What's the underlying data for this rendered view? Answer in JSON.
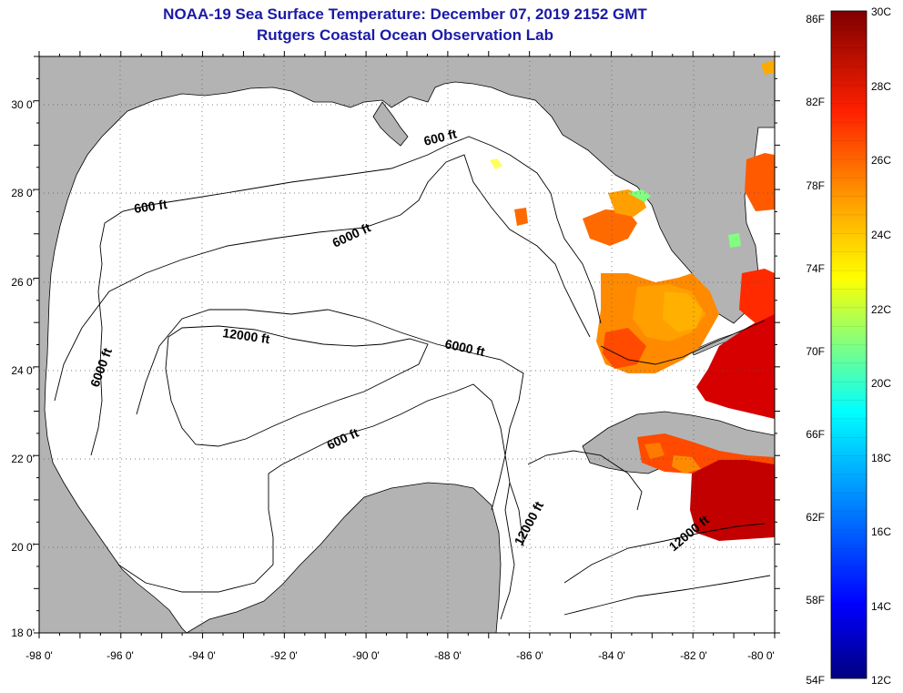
{
  "header": {
    "title": "NOAA-19 Sea Surface Temperature:  December 07, 2019 2152 GMT",
    "subtitle": "Rutgers Coastal Ocean Observation Lab"
  },
  "map": {
    "region": "Gulf of Mexico",
    "lon_range": [
      -98,
      -80
    ],
    "lat_range": [
      18,
      31
    ],
    "x_ticks": [
      "-98 0'",
      "-96 0'",
      "-94 0'",
      "-92 0'",
      "-90 0'",
      "-88 0'",
      "-86 0'",
      "-84 0'",
      "-82 0'",
      "-80 0'"
    ],
    "y_ticks": [
      "30 0'",
      "28 0'",
      "26 0'",
      "24 0'",
      "22 0'",
      "20 0'",
      "18 0'"
    ],
    "land_color": "#b3b3b3",
    "ocean_color": "#ffffff",
    "contours": [
      "600 ft",
      "6000 ft",
      "12000 ft",
      "6000 ft",
      "600 ft",
      "6000 ft",
      "600 ft",
      "12000 ft",
      "12000 ft"
    ]
  },
  "colorbar": {
    "fahrenheit_labels": [
      "86F",
      "82F",
      "78F",
      "74F",
      "70F",
      "66F",
      "62F",
      "58F",
      "54F"
    ],
    "celsius_labels": [
      "30C",
      "28C",
      "26C",
      "24C",
      "22C",
      "20C",
      "18C",
      "16C",
      "14C",
      "12C"
    ],
    "min_c": 12,
    "max_c": 30,
    "colormap": [
      "#00007f",
      "#0000ff",
      "#0080ff",
      "#00ffff",
      "#80ff80",
      "#ffff00",
      "#ff8000",
      "#ff0000",
      "#7f0000"
    ]
  }
}
